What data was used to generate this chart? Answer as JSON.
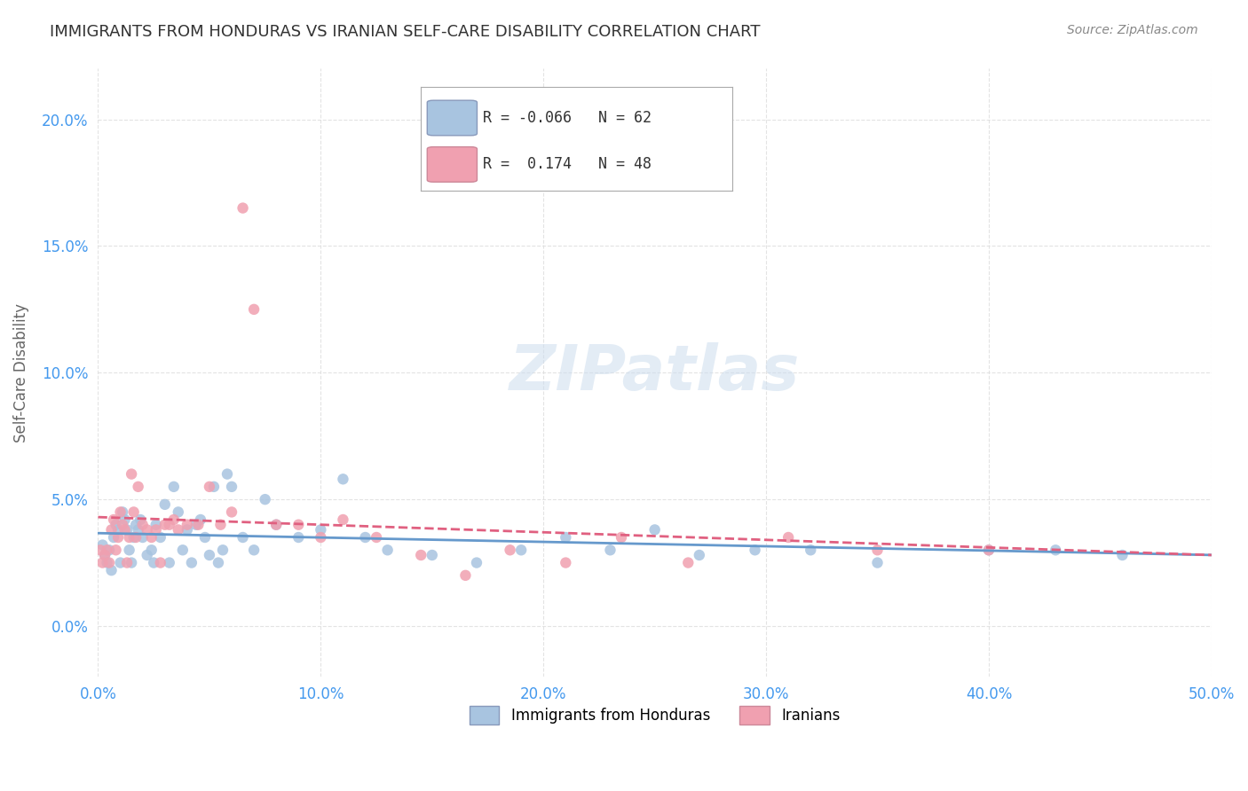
{
  "title": "IMMIGRANTS FROM HONDURAS VS IRANIAN SELF-CARE DISABILITY CORRELATION CHART",
  "source": "Source: ZipAtlas.com",
  "xlabel": "",
  "ylabel": "Self-Care Disability",
  "xlim": [
    0.0,
    0.5
  ],
  "ylim": [
    -0.02,
    0.22
  ],
  "yticks": [
    0.0,
    0.05,
    0.1,
    0.15,
    0.2
  ],
  "ytick_labels": [
    "0.0%",
    "5.0%",
    "10.0%",
    "15.0%",
    "20.0%"
  ],
  "xticks": [
    0.0,
    0.1,
    0.2,
    0.3,
    0.4,
    0.5
  ],
  "xtick_labels": [
    "0.0%",
    "10.0%",
    "20.0%",
    "30.0%",
    "40.0%",
    "50.0%"
  ],
  "legend_entries": [
    {
      "label": "Immigrants from Honduras",
      "color": "#a8c4e0"
    },
    {
      "label": "Iranians",
      "color": "#f0a0b0"
    }
  ],
  "r1": -0.066,
  "n1": 62,
  "r2": 0.174,
  "n2": 48,
  "trend1_color": "#6699cc",
  "trend2_color": "#e06080",
  "background_color": "#ffffff",
  "grid_color": "#dddddd",
  "title_fontsize": 13,
  "axis_label_color": "#4499ee",
  "watermark": "ZIPatlas",
  "scatter1_x": [
    0.002,
    0.003,
    0.004,
    0.005,
    0.006,
    0.007,
    0.008,
    0.009,
    0.01,
    0.011,
    0.012,
    0.013,
    0.014,
    0.015,
    0.016,
    0.017,
    0.018,
    0.019,
    0.02,
    0.022,
    0.024,
    0.025,
    0.026,
    0.028,
    0.03,
    0.032,
    0.034,
    0.036,
    0.038,
    0.04,
    0.042,
    0.044,
    0.046,
    0.048,
    0.05,
    0.052,
    0.054,
    0.056,
    0.058,
    0.06,
    0.065,
    0.07,
    0.075,
    0.08,
    0.09,
    0.1,
    0.11,
    0.12,
    0.13,
    0.15,
    0.17,
    0.19,
    0.21,
    0.23,
    0.25,
    0.27,
    0.295,
    0.32,
    0.35,
    0.4,
    0.43,
    0.46
  ],
  "scatter1_y": [
    0.032,
    0.028,
    0.025,
    0.03,
    0.022,
    0.035,
    0.04,
    0.038,
    0.025,
    0.045,
    0.042,
    0.038,
    0.03,
    0.025,
    0.035,
    0.04,
    0.038,
    0.042,
    0.035,
    0.028,
    0.03,
    0.025,
    0.04,
    0.035,
    0.048,
    0.025,
    0.055,
    0.045,
    0.03,
    0.038,
    0.025,
    0.04,
    0.042,
    0.035,
    0.028,
    0.055,
    0.025,
    0.03,
    0.06,
    0.055,
    0.035,
    0.03,
    0.05,
    0.04,
    0.035,
    0.038,
    0.058,
    0.035,
    0.03,
    0.028,
    0.025,
    0.03,
    0.035,
    0.03,
    0.038,
    0.028,
    0.03,
    0.03,
    0.025,
    0.03,
    0.03,
    0.028
  ],
  "scatter2_x": [
    0.001,
    0.002,
    0.003,
    0.004,
    0.005,
    0.006,
    0.007,
    0.008,
    0.009,
    0.01,
    0.011,
    0.012,
    0.013,
    0.014,
    0.015,
    0.016,
    0.017,
    0.018,
    0.02,
    0.022,
    0.024,
    0.026,
    0.028,
    0.03,
    0.032,
    0.034,
    0.036,
    0.04,
    0.045,
    0.05,
    0.055,
    0.06,
    0.065,
    0.07,
    0.08,
    0.09,
    0.1,
    0.11,
    0.125,
    0.145,
    0.165,
    0.185,
    0.21,
    0.235,
    0.265,
    0.31,
    0.35,
    0.4
  ],
  "scatter2_y": [
    0.03,
    0.025,
    0.028,
    0.03,
    0.025,
    0.038,
    0.042,
    0.03,
    0.035,
    0.045,
    0.04,
    0.038,
    0.025,
    0.035,
    0.06,
    0.045,
    0.035,
    0.055,
    0.04,
    0.038,
    0.035,
    0.038,
    0.025,
    0.04,
    0.04,
    0.042,
    0.038,
    0.04,
    0.04,
    0.055,
    0.04,
    0.045,
    0.165,
    0.125,
    0.04,
    0.04,
    0.035,
    0.042,
    0.035,
    0.028,
    0.02,
    0.03,
    0.025,
    0.035,
    0.025,
    0.035,
    0.03,
    0.03
  ]
}
